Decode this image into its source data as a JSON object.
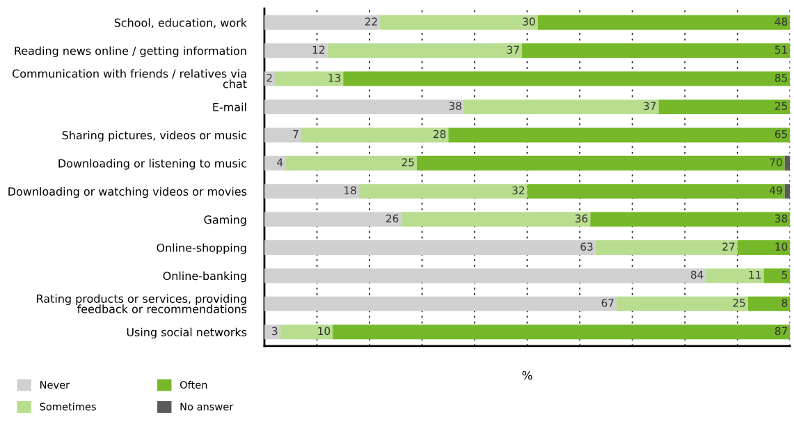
{
  "chart_data": {
    "type": "bar",
    "orientation": "horizontal",
    "stacked": true,
    "xlabel": "%",
    "categories": [
      "School, education, work",
      "Reading news online / getting information",
      "Communication with friends / relatives via\nchat",
      "E-mail",
      "Sharing pictures, videos or music",
      "Downloading or listening to music",
      "Downloading or watching videos or movies",
      "Gaming",
      "Online-shopping",
      "Online-banking",
      "Rating products or services, providing\nfeedback or recommendations",
      "Using social networks"
    ],
    "series": [
      {
        "name": "Never",
        "color": "#d0d0d0",
        "values": [
          22,
          12,
          2,
          38,
          7,
          4,
          18,
          26,
          63,
          84,
          67,
          3
        ],
        "value_labels": [
          "22",
          "12",
          "2",
          "38",
          "7",
          "4",
          "18",
          "26",
          "63",
          "84",
          "67",
          "3"
        ]
      },
      {
        "name": "Sometimes",
        "color": "#b8dd8f",
        "values": [
          30,
          37,
          13,
          37,
          28,
          25,
          32,
          36,
          27,
          11,
          25,
          10
        ],
        "value_labels": [
          "30",
          "37",
          "13",
          "37",
          "28",
          "25",
          "32",
          "36",
          "27",
          "11",
          "25",
          "10"
        ]
      },
      {
        "name": "Often",
        "color": "#76b82a",
        "values": [
          48,
          51,
          85,
          25,
          65,
          70,
          49,
          38,
          10,
          5,
          8,
          87
        ],
        "value_labels": [
          "48",
          "51",
          "85",
          "25",
          "65",
          "70",
          "49",
          "38",
          "10",
          "5",
          "8",
          "87"
        ]
      },
      {
        "name": "No answer",
        "color": "#5a5a5a",
        "values": [
          0,
          0,
          0,
          0,
          0,
          1,
          1,
          0,
          0,
          0,
          0,
          0
        ],
        "value_labels": [
          null,
          null,
          null,
          null,
          null,
          null,
          null,
          null,
          null,
          null,
          null,
          null
        ]
      }
    ],
    "xlim": [
      0,
      100
    ],
    "xticks": [
      {
        "value": 10,
        "label": null
      },
      {
        "value": 20,
        "label": null
      },
      {
        "value": 30,
        "label": null
      },
      {
        "value": 40,
        "label": null
      },
      {
        "value": 50,
        "label": null
      },
      {
        "value": 60,
        "label": null
      },
      {
        "value": 70,
        "label": null
      },
      {
        "value": 80,
        "label": null
      },
      {
        "value": 90,
        "label": null
      },
      {
        "value": 100,
        "label": null
      }
    ],
    "grid": "x",
    "legend": "bottom left"
  }
}
